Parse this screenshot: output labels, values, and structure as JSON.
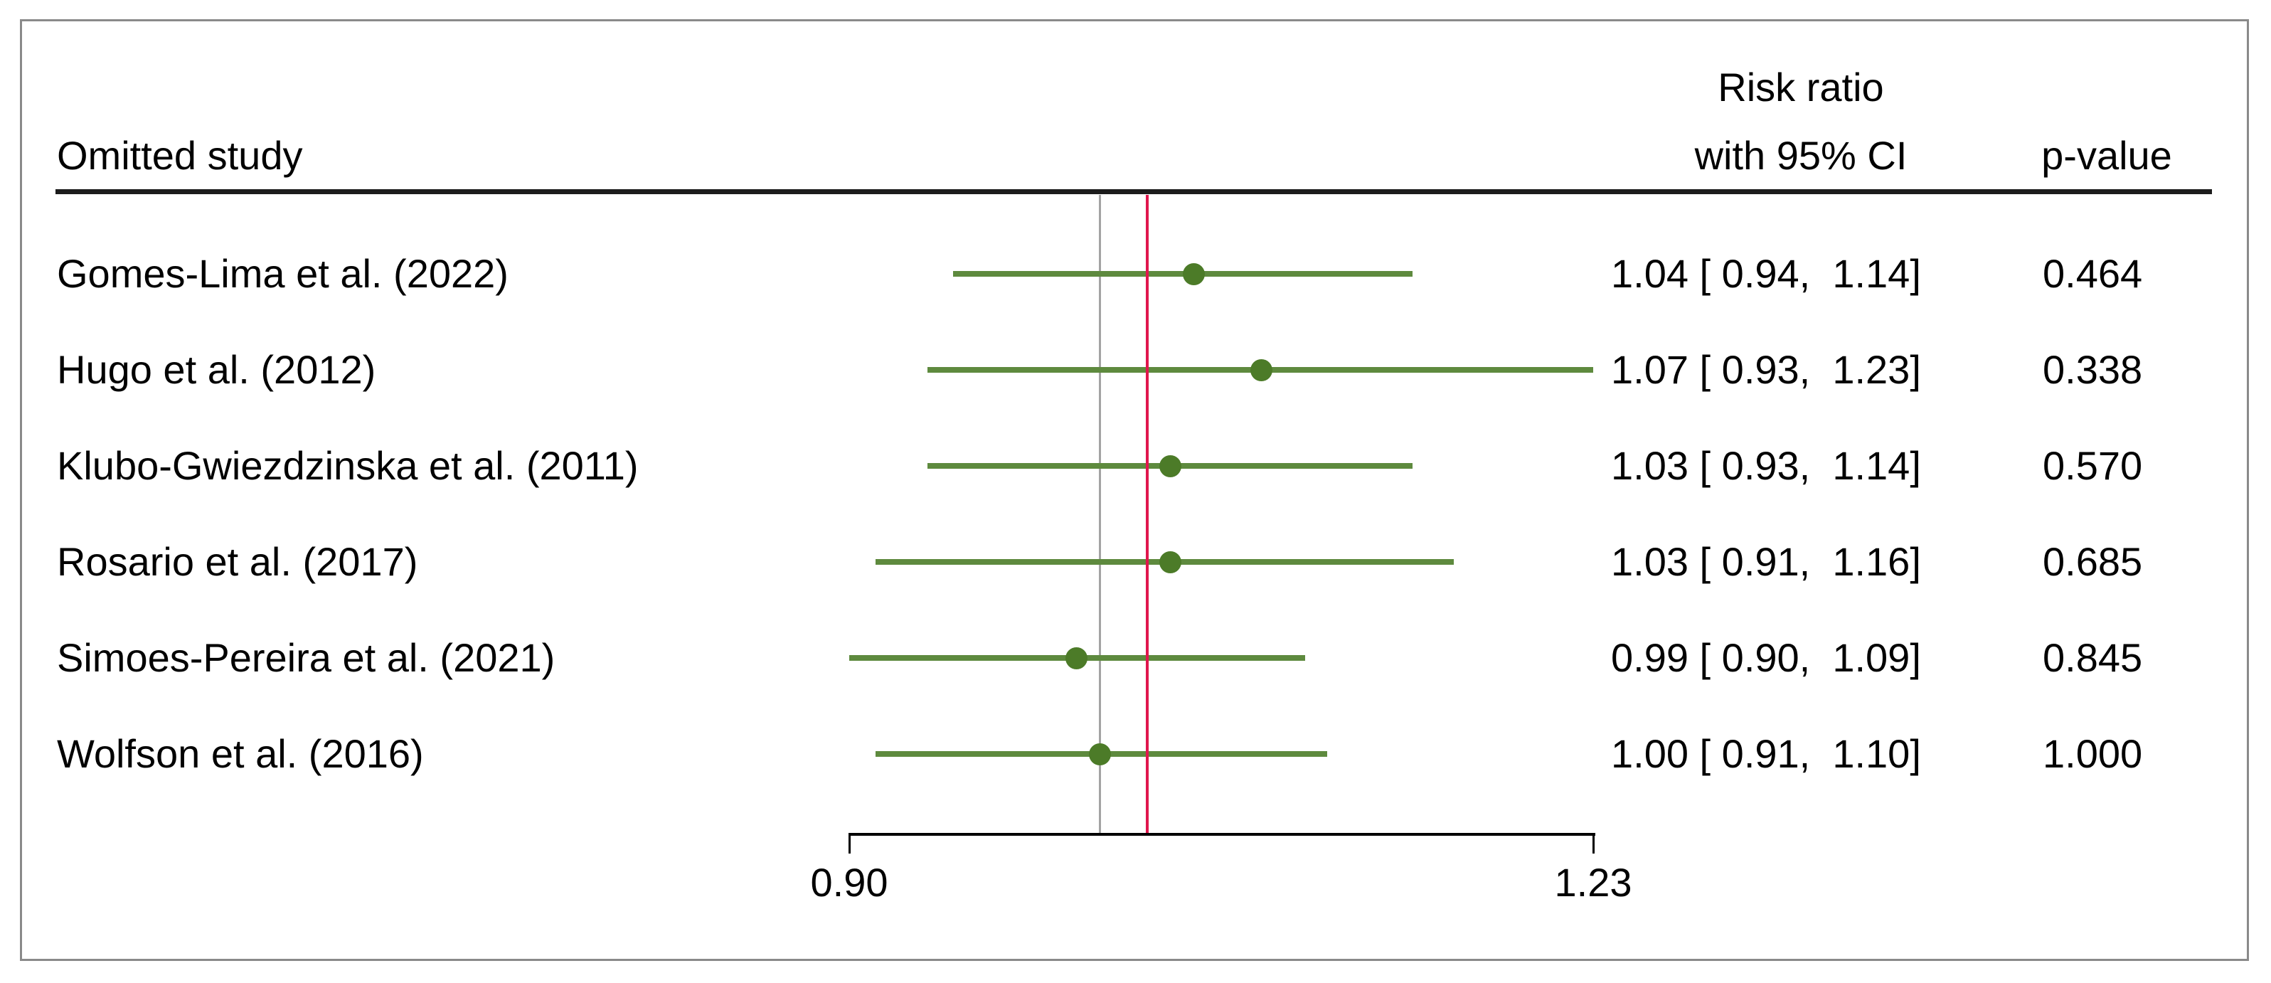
{
  "header": {
    "study_col": "Omitted study",
    "effect_col_line1": "Risk ratio",
    "effect_col_line2": "with 95% CI",
    "p_col": "p-value"
  },
  "colors": {
    "ci_line_green": "#5e8a3e",
    "marker_green": "#4c7b28",
    "null_line_gray": "#a3a3a3",
    "overall_line_red": "#e0164d",
    "axis_black": "#000000",
    "rule_black": "#1c1c1c",
    "frame_gray": "#8a8a8a"
  },
  "chart_data": {
    "type": "forest",
    "subtype": "leave-one-out-sensitivity",
    "effect_measure": "Risk ratio",
    "xaxis": {
      "scale": "log",
      "min": 0.9,
      "max": 1.23,
      "ticks": [
        0.9,
        1.23
      ],
      "tick_labels": [
        "0.90",
        "1.23"
      ]
    },
    "reference_lines": [
      {
        "name": "null-line",
        "value": 1.0,
        "color": "#a3a3a3",
        "width": 3
      },
      {
        "name": "overall-estimate-line",
        "value": 1.02,
        "color": "#e0164d",
        "width": 4
      }
    ],
    "rows": [
      {
        "label": "Gomes-Lima et al. (2022)",
        "estimate": 1.04,
        "ci_low": 0.94,
        "ci_high": 1.14,
        "effect_text": "1.04 [ 0.94,  1.14]",
        "p_text": "0.464"
      },
      {
        "label": "Hugo et al. (2012)",
        "estimate": 1.07,
        "ci_low": 0.93,
        "ci_high": 1.23,
        "effect_text": "1.07 [ 0.93,  1.23]",
        "p_text": "0.338"
      },
      {
        "label": "Klubo-Gwiezdzinska et al. (2011)",
        "estimate": 1.03,
        "ci_low": 0.93,
        "ci_high": 1.14,
        "effect_text": "1.03 [ 0.93,  1.14]",
        "p_text": "0.570"
      },
      {
        "label": "Rosario et al. (2017)",
        "estimate": 1.03,
        "ci_low": 0.91,
        "ci_high": 1.16,
        "effect_text": "1.03 [ 0.91,  1.16]",
        "p_text": "0.685"
      },
      {
        "label": "Simoes-Pereira et al. (2021)",
        "estimate": 0.99,
        "ci_low": 0.9,
        "ci_high": 1.09,
        "effect_text": "0.99 [ 0.90,  1.09]",
        "p_text": "0.845"
      },
      {
        "label": "Wolfson et al. (2016)",
        "estimate": 1.0,
        "ci_low": 0.91,
        "ci_high": 1.1,
        "effect_text": "1.00 [ 0.91,  1.10]",
        "p_text": "1.000"
      }
    ]
  }
}
